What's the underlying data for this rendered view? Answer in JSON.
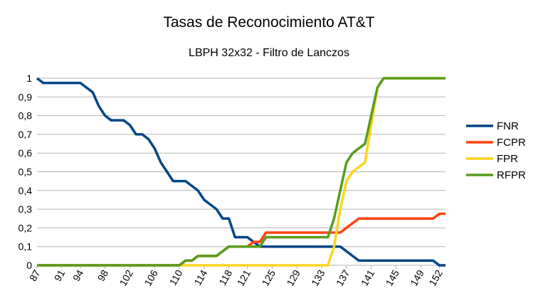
{
  "chart_data": {
    "type": "line",
    "title": "Tasas de Reconocimiento AT&T",
    "subtitle": "LBPH 32x32 - Filtro de Lanczos",
    "xlabel": "",
    "ylabel": "",
    "ylim": [
      0,
      1
    ],
    "ytick_labels": [
      "0",
      "0,1",
      "0,2",
      "0,3",
      "0,4",
      "0,5",
      "0,6",
      "0,7",
      "0,8",
      "0,9",
      "1"
    ],
    "x": [
      87,
      88,
      89,
      90,
      91,
      92,
      93,
      94,
      95,
      96,
      97,
      98,
      99,
      100,
      101,
      102,
      103,
      104,
      105,
      106,
      107,
      108,
      109,
      110,
      111,
      112,
      113,
      114,
      115,
      116,
      117,
      118,
      119,
      120,
      121,
      122,
      123,
      124,
      125,
      126,
      127,
      128,
      129,
      130,
      131,
      132,
      133,
      134,
      135,
      136,
      137,
      138,
      139,
      140,
      141,
      142,
      143,
      144,
      145,
      146,
      147,
      148,
      149,
      150,
      151,
      152,
      153
    ],
    "xtick_labels": [
      "87",
      "91",
      "94",
      "98",
      "102",
      "106",
      "110",
      "114",
      "118",
      "121",
      "125",
      "129",
      "133",
      "137",
      "141",
      "145",
      "149",
      "152"
    ],
    "legend_position": "right",
    "series": [
      {
        "name": "FNR",
        "color": "#004586",
        "values": [
          1,
          0.975,
          0.975,
          0.975,
          0.975,
          0.975,
          0.975,
          0.975,
          0.95,
          0.925,
          0.85,
          0.8,
          0.775,
          0.775,
          0.775,
          0.75,
          0.7,
          0.7,
          0.675,
          0.625,
          0.55,
          0.5,
          0.45,
          0.45,
          0.45,
          0.425,
          0.4,
          0.35,
          0.325,
          0.3,
          0.25,
          0.25,
          0.15,
          0.15,
          0.15,
          0.125,
          0.1,
          0.1,
          0.1,
          0.1,
          0.1,
          0.1,
          0.1,
          0.1,
          0.1,
          0.1,
          0.1,
          0.1,
          0.1,
          0.1,
          0.075,
          0.05,
          0.025,
          0.025,
          0.025,
          0.025,
          0.025,
          0.025,
          0.025,
          0.025,
          0.025,
          0.025,
          0.025,
          0.025,
          0.025,
          0,
          0
        ]
      },
      {
        "name": "FCPR",
        "color": "#ff420e",
        "values": [
          0,
          0,
          0,
          0,
          0,
          0,
          0,
          0,
          0,
          0,
          0,
          0,
          0,
          0,
          0,
          0,
          0,
          0,
          0,
          0,
          0,
          0,
          0,
          0,
          0.025,
          0.025,
          0.05,
          0.05,
          0.05,
          0.05,
          0.075,
          0.1,
          0.1,
          0.1,
          0.1,
          0.125,
          0.125,
          0.175,
          0.175,
          0.175,
          0.175,
          0.175,
          0.175,
          0.175,
          0.175,
          0.175,
          0.175,
          0.175,
          0.175,
          0.175,
          0.2,
          0.225,
          0.25,
          0.25,
          0.25,
          0.25,
          0.25,
          0.25,
          0.25,
          0.25,
          0.25,
          0.25,
          0.25,
          0.25,
          0.25,
          0.275,
          0.275
        ]
      },
      {
        "name": "FPR",
        "color": "#ffd320",
        "values": [
          0,
          0,
          0,
          0,
          0,
          0,
          0,
          0,
          0,
          0,
          0,
          0,
          0,
          0,
          0,
          0,
          0,
          0,
          0,
          0,
          0,
          0,
          0,
          0,
          0,
          0,
          0,
          0,
          0,
          0,
          0,
          0,
          0,
          0,
          0,
          0,
          0,
          0,
          0,
          0,
          0,
          0,
          0,
          0,
          0,
          0,
          0,
          0,
          0.1,
          0.3,
          0.45,
          0.5,
          0.525,
          0.55,
          0.75,
          0.95,
          1,
          1,
          1,
          1,
          1,
          1,
          1,
          1,
          1,
          1,
          1
        ]
      },
      {
        "name": "RFPR",
        "color": "#579d1c",
        "values": [
          0,
          0,
          0,
          0,
          0,
          0,
          0,
          0,
          0,
          0,
          0,
          0,
          0,
          0,
          0,
          0,
          0,
          0,
          0,
          0,
          0,
          0,
          0,
          0,
          0.025,
          0.025,
          0.05,
          0.05,
          0.05,
          0.05,
          0.075,
          0.1,
          0.1,
          0.1,
          0.1,
          0.1,
          0.1,
          0.15,
          0.15,
          0.15,
          0.15,
          0.15,
          0.15,
          0.15,
          0.15,
          0.15,
          0.15,
          0.15,
          0.25,
          0.4,
          0.55,
          0.6,
          0.625,
          0.65,
          0.8,
          0.95,
          1,
          1,
          1,
          1,
          1,
          1,
          1,
          1,
          1,
          1,
          1
        ]
      }
    ]
  }
}
